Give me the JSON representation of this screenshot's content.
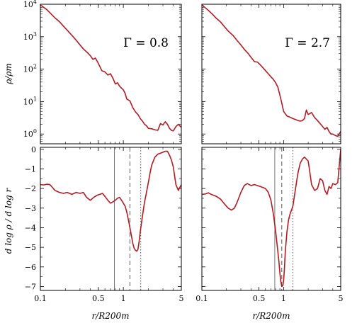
{
  "colors": {
    "curve": "#b01c24",
    "r_solid": "#777777",
    "r_dashed": "#555555",
    "r_dotted": "#555555"
  },
  "chart_data": {
    "type": "line",
    "xscale": "log",
    "xlim": [
      0.1,
      5
    ],
    "xticks": [
      0.1,
      0.5,
      1,
      5
    ],
    "xtick_labels": [
      "0.1",
      "0.5",
      "1",
      "5"
    ],
    "xlabel": "r/R200m",
    "rho_ylabel": "ρ/ρm",
    "slope_ylabel": "d log ρ / d log r",
    "rho_yscale": "log",
    "rho_ylim": [
      0.5,
      10000
    ],
    "rho_yticks": [
      1,
      10,
      100,
      1000,
      10000
    ],
    "rho_ytick_labels": [
      "10^0",
      "10^1",
      "10^2",
      "10^3",
      "10^4"
    ],
    "slope_ylim": [
      -7.2,
      0.1
    ],
    "slope_yticks": [
      0,
      -1,
      -2,
      -3,
      -4,
      -5,
      -6,
      -7
    ],
    "slope_ytick_labels": [
      "0",
      "−1",
      "−2",
      "−3",
      "−4",
      "−5",
      "−6",
      "−7"
    ],
    "panels": [
      {
        "label": "Γ = 0.8",
        "density": {
          "x": [
            0.1,
            0.11,
            0.12,
            0.135,
            0.15,
            0.17,
            0.19,
            0.21,
            0.24,
            0.27,
            0.3,
            0.33,
            0.37,
            0.4,
            0.43,
            0.46,
            0.5,
            0.55,
            0.6,
            0.65,
            0.7,
            0.75,
            0.8,
            0.85,
            0.9,
            0.95,
            1.0,
            1.05,
            1.1,
            1.2,
            1.3,
            1.4,
            1.5,
            1.6,
            1.7,
            1.8,
            1.9,
            2.0,
            2.2,
            2.4,
            2.6,
            2.8,
            3.0,
            3.2,
            3.4,
            3.6,
            3.8,
            4.0,
            4.3,
            4.6,
            5.0
          ],
          "y": [
            9500,
            8000,
            6800,
            5000,
            3800,
            2900,
            2100,
            1600,
            1100,
            780,
            560,
            420,
            320,
            260,
            200,
            220,
            150,
            90,
            82,
            66,
            72,
            52,
            35,
            38,
            30,
            26,
            23,
            18,
            12,
            10.5,
            6.5,
            4.8,
            4.0,
            3.0,
            2.5,
            2.0,
            1.8,
            1.5,
            1.45,
            1.35,
            1.3,
            2.1,
            1.9,
            2.4,
            2.0,
            1.5,
            1.3,
            1.25,
            1.7,
            2.0,
            1.6
          ]
        },
        "slope": {
          "x": [
            0.1,
            0.11,
            0.12,
            0.13,
            0.14,
            0.15,
            0.17,
            0.19,
            0.21,
            0.24,
            0.27,
            0.3,
            0.33,
            0.36,
            0.4,
            0.44,
            0.48,
            0.52,
            0.56,
            0.6,
            0.65,
            0.7,
            0.75,
            0.8,
            0.85,
            0.9,
            0.95,
            1.0,
            1.05,
            1.1,
            1.15,
            1.2,
            1.25,
            1.3,
            1.35,
            1.4,
            1.45,
            1.5,
            1.55,
            1.6,
            1.65,
            1.7,
            1.8,
            1.9,
            2.0,
            2.1,
            2.2,
            2.4,
            2.6,
            2.8,
            3.0,
            3.2,
            3.4,
            3.6,
            3.8,
            4.0,
            4.3,
            4.6,
            5.0
          ],
          "y": [
            -1.8,
            -1.82,
            -1.78,
            -1.8,
            -1.95,
            -2.1,
            -2.2,
            -2.25,
            -2.2,
            -2.3,
            -2.2,
            -2.25,
            -2.2,
            -2.45,
            -2.6,
            -2.45,
            -2.35,
            -2.3,
            -2.25,
            -2.4,
            -2.6,
            -2.75,
            -2.68,
            -2.6,
            -2.5,
            -2.45,
            -2.6,
            -2.75,
            -2.9,
            -3.2,
            -3.6,
            -4.0,
            -4.4,
            -4.8,
            -5.05,
            -5.15,
            -5.2,
            -5.1,
            -4.7,
            -4.2,
            -3.8,
            -3.4,
            -2.7,
            -2.2,
            -1.7,
            -1.2,
            -0.8,
            -0.4,
            -0.25,
            -0.2,
            -0.15,
            -0.1,
            -0.1,
            -0.3,
            -0.55,
            -0.9,
            -1.8,
            -2.1,
            -1.8
          ]
        },
        "radii": {
          "solid": 0.78,
          "dashed": 1.2,
          "dotted": 1.62
        }
      },
      {
        "label": "Γ = 2.7",
        "density": {
          "x": [
            0.1,
            0.11,
            0.12,
            0.135,
            0.15,
            0.17,
            0.19,
            0.21,
            0.24,
            0.27,
            0.3,
            0.33,
            0.37,
            0.4,
            0.44,
            0.48,
            0.52,
            0.56,
            0.6,
            0.65,
            0.7,
            0.75,
            0.8,
            0.85,
            0.9,
            0.95,
            1.0,
            1.05,
            1.1,
            1.2,
            1.3,
            1.4,
            1.5,
            1.6,
            1.7,
            1.8,
            1.9,
            2.0,
            2.2,
            2.4,
            2.6,
            2.8,
            3.0,
            3.2,
            3.4,
            3.6,
            3.8,
            4.0,
            4.3,
            4.6,
            5.0
          ],
          "y": [
            9500,
            7800,
            6500,
            4900,
            3700,
            2800,
            2000,
            1500,
            1100,
            760,
            560,
            410,
            300,
            230,
            170,
            165,
            135,
            110,
            90,
            72,
            58,
            48,
            38,
            28,
            16,
            9,
            5,
            4.2,
            3.6,
            3.3,
            3.0,
            2.8,
            2.6,
            2.5,
            2.6,
            3.0,
            5.5,
            4.0,
            4.6,
            3.2,
            2.6,
            2.1,
            1.7,
            1.4,
            1.6,
            1.2,
            1.0,
            1.0,
            0.9,
            0.85,
            1.2
          ]
        },
        "slope": {
          "x": [
            0.1,
            0.11,
            0.12,
            0.13,
            0.15,
            0.17,
            0.19,
            0.21,
            0.23,
            0.25,
            0.27,
            0.3,
            0.33,
            0.36,
            0.4,
            0.44,
            0.48,
            0.52,
            0.56,
            0.6,
            0.65,
            0.7,
            0.75,
            0.8,
            0.85,
            0.88,
            0.9,
            0.92,
            0.95,
            0.98,
            1.0,
            1.02,
            1.05,
            1.1,
            1.15,
            1.2,
            1.3,
            1.4,
            1.5,
            1.6,
            1.7,
            1.8,
            1.9,
            2.0,
            2.1,
            2.2,
            2.4,
            2.6,
            2.8,
            3.0,
            3.2,
            3.4,
            3.6,
            3.8,
            4.0,
            4.3,
            4.6,
            5.0
          ],
          "y": [
            -2.3,
            -2.28,
            -2.22,
            -2.3,
            -2.4,
            -2.55,
            -2.8,
            -3.0,
            -3.1,
            -3.0,
            -2.7,
            -2.2,
            -1.85,
            -1.75,
            -1.85,
            -1.8,
            -1.85,
            -1.9,
            -1.95,
            -2.0,
            -2.2,
            -2.6,
            -3.3,
            -4.2,
            -5.2,
            -5.8,
            -6.3,
            -6.7,
            -7.0,
            -6.95,
            -6.7,
            -6.2,
            -5.2,
            -4.2,
            -3.6,
            -3.3,
            -2.9,
            -2.0,
            -1.2,
            -0.7,
            -0.5,
            -0.4,
            -0.5,
            -0.6,
            -1.2,
            -1.8,
            -2.1,
            -2.0,
            -1.5,
            -1.6,
            -2.1,
            -2.3,
            -1.9,
            -2.0,
            -1.75,
            -1.8,
            -1.7,
            0
          ]
        },
        "radii": {
          "solid": 0.78,
          "dashed": 0.95,
          "dotted": 1.3
        }
      }
    ]
  }
}
